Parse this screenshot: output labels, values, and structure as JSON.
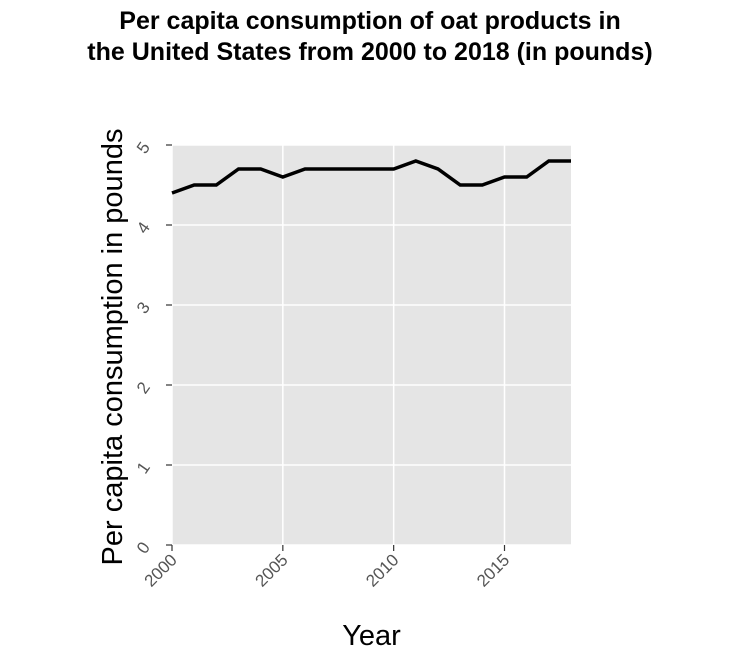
{
  "chart_data": {
    "type": "line",
    "title": "Per capita consumption of oat products in the United States from 2000 to 2018 (in pounds)",
    "title_lines": [
      "Per capita consumption of oat products in",
      "the United States from 2000 to 2018 (in pounds)"
    ],
    "xlabel": "Year",
    "ylabel": "Per capita consumption in pounds",
    "xlim": [
      2000,
      2018
    ],
    "ylim": [
      0,
      5
    ],
    "x_ticks": [
      2000,
      2005,
      2010,
      2015
    ],
    "y_ticks": [
      0,
      1,
      2,
      3,
      4,
      5
    ],
    "grid": true,
    "series": [
      {
        "x": [
          2000,
          2001,
          2002,
          2003,
          2004,
          2005,
          2006,
          2007,
          2008,
          2009,
          2010,
          2011,
          2012,
          2013,
          2014,
          2015,
          2016,
          2017,
          2018
        ],
        "values": [
          4.4,
          4.5,
          4.5,
          4.7,
          4.7,
          4.6,
          4.7,
          4.7,
          4.7,
          4.7,
          4.7,
          4.8,
          4.7,
          4.5,
          4.5,
          4.6,
          4.6,
          4.8,
          4.8
        ],
        "color": "#000000"
      }
    ],
    "plot_background": "#e5e5e5",
    "grid_color": "#ffffff"
  }
}
